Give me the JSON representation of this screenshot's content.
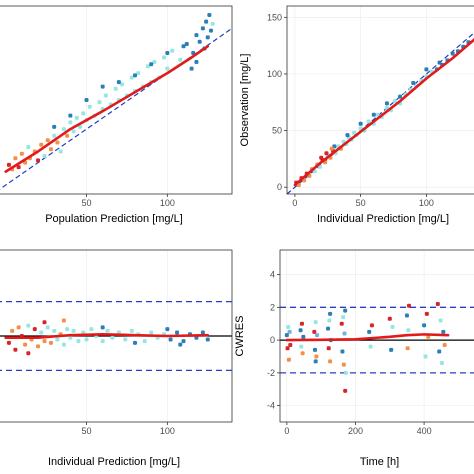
{
  "figure": {
    "panels": [
      "panel_tl",
      "panel_tr",
      "panel_bl",
      "panel_br"
    ]
  },
  "colors": {
    "smooth": "#e31a1c",
    "identity": "#1f3fbf",
    "zero": "#000000",
    "bound": "#2b3ec4",
    "points": [
      "#1f78b4",
      "#8ee6e0",
      "#f08a3c",
      "#d7191c",
      "#6baed6"
    ]
  },
  "chart_data": [
    {
      "id": "panel_tl",
      "type": "scatter",
      "title": "",
      "xlabel": "Population Prediction [mg/L]",
      "ylabel": "",
      "xlim": [
        -6,
        140
      ],
      "ylim": [
        -8,
        160
      ],
      "xticks": [
        50,
        100
      ],
      "yticks": [],
      "reference": "identity",
      "smooth": [
        [
          0,
          12
        ],
        [
          20,
          30
        ],
        [
          40,
          50
        ],
        [
          60,
          66
        ],
        [
          80,
          83
        ],
        [
          100,
          100
        ],
        [
          115,
          114
        ],
        [
          125,
          124
        ]
      ],
      "points": [
        [
          2,
          18,
          3
        ],
        [
          4,
          14,
          2
        ],
        [
          6,
          24,
          2
        ],
        [
          8,
          16,
          3
        ],
        [
          10,
          28,
          2
        ],
        [
          12,
          20,
          2
        ],
        [
          14,
          34,
          1
        ],
        [
          15,
          24,
          2
        ],
        [
          18,
          30,
          2
        ],
        [
          20,
          22,
          3
        ],
        [
          22,
          36,
          2
        ],
        [
          24,
          26,
          1
        ],
        [
          26,
          40,
          2
        ],
        [
          28,
          32,
          2
        ],
        [
          30,
          44,
          1
        ],
        [
          32,
          38,
          2
        ],
        [
          34,
          30,
          1
        ],
        [
          36,
          50,
          1
        ],
        [
          38,
          44,
          2
        ],
        [
          40,
          56,
          1
        ],
        [
          42,
          48,
          1
        ],
        [
          44,
          60,
          1
        ],
        [
          46,
          52,
          1
        ],
        [
          48,
          64,
          1
        ],
        [
          50,
          58,
          1
        ],
        [
          52,
          70,
          1
        ],
        [
          55,
          62,
          1
        ],
        [
          58,
          74,
          1
        ],
        [
          60,
          68,
          1
        ],
        [
          62,
          80,
          1
        ],
        [
          65,
          72,
          1
        ],
        [
          68,
          86,
          1
        ],
        [
          70,
          76,
          1
        ],
        [
          72,
          90,
          1
        ],
        [
          75,
          80,
          1
        ],
        [
          78,
          96,
          1
        ],
        [
          80,
          84,
          1
        ],
        [
          82,
          100,
          1
        ],
        [
          85,
          88,
          1
        ],
        [
          88,
          106,
          1
        ],
        [
          90,
          92,
          1
        ],
        [
          92,
          110,
          1
        ],
        [
          95,
          96,
          1
        ],
        [
          98,
          114,
          1
        ],
        [
          100,
          104,
          1
        ],
        [
          103,
          120,
          1
        ],
        [
          108,
          112,
          1
        ],
        [
          112,
          126,
          0
        ],
        [
          116,
          118,
          0
        ],
        [
          118,
          134,
          0
        ],
        [
          120,
          128,
          0
        ],
        [
          122,
          140,
          0
        ],
        [
          124,
          146,
          0
        ],
        [
          125,
          132,
          0
        ],
        [
          126,
          152,
          0
        ],
        [
          127,
          138,
          0
        ],
        [
          128,
          144,
          1
        ],
        [
          118,
          110,
          0
        ],
        [
          60,
          88,
          0
        ],
        [
          70,
          92,
          0
        ],
        [
          80,
          98,
          0
        ],
        [
          50,
          76,
          0
        ],
        [
          40,
          62,
          0
        ],
        [
          30,
          52,
          0
        ],
        [
          90,
          108,
          0
        ],
        [
          100,
          118,
          0
        ],
        [
          110,
          124,
          0
        ],
        [
          115,
          104,
          0
        ],
        [
          123,
          122,
          0
        ]
      ]
    },
    {
      "id": "panel_tr",
      "type": "scatter",
      "title": "",
      "xlabel": "Individual Prediction [mg/L]",
      "ylabel": "Observation [mg/L]",
      "xlim": [
        -6,
        140
      ],
      "ylim": [
        -6,
        160
      ],
      "xticks": [
        0,
        50,
        100
      ],
      "yticks": [
        0,
        50,
        100,
        150
      ],
      "reference": "identity",
      "smooth": [
        [
          0,
          2
        ],
        [
          20,
          22
        ],
        [
          40,
          40
        ],
        [
          60,
          58
        ],
        [
          80,
          76
        ],
        [
          100,
          96
        ],
        [
          120,
          114
        ],
        [
          140,
          134
        ]
      ],
      "points": [
        [
          1,
          4,
          3
        ],
        [
          3,
          2,
          2
        ],
        [
          5,
          8,
          3
        ],
        [
          7,
          6,
          2
        ],
        [
          9,
          12,
          3
        ],
        [
          11,
          10,
          2
        ],
        [
          13,
          16,
          2
        ],
        [
          15,
          14,
          1
        ],
        [
          17,
          20,
          2
        ],
        [
          19,
          18,
          1
        ],
        [
          21,
          24,
          3
        ],
        [
          23,
          22,
          2
        ],
        [
          25,
          28,
          1
        ],
        [
          27,
          26,
          2
        ],
        [
          29,
          32,
          3
        ],
        [
          31,
          30,
          1
        ],
        [
          33,
          36,
          1
        ],
        [
          35,
          34,
          2
        ],
        [
          37,
          40,
          1
        ],
        [
          39,
          38,
          1
        ],
        [
          41,
          44,
          1
        ],
        [
          43,
          42,
          1
        ],
        [
          45,
          48,
          1
        ],
        [
          47,
          46,
          1
        ],
        [
          50,
          52,
          1
        ],
        [
          53,
          50,
          1
        ],
        [
          56,
          58,
          1
        ],
        [
          60,
          56,
          1
        ],
        [
          63,
          64,
          1
        ],
        [
          66,
          62,
          1
        ],
        [
          70,
          70,
          1
        ],
        [
          73,
          68,
          1
        ],
        [
          76,
          76,
          1
        ],
        [
          80,
          74,
          1
        ],
        [
          84,
          82,
          1
        ],
        [
          88,
          86,
          1
        ],
        [
          92,
          90,
          1
        ],
        [
          96,
          94,
          1
        ],
        [
          100,
          98,
          1
        ],
        [
          104,
          102,
          1
        ],
        [
          108,
          104,
          0
        ],
        [
          112,
          108,
          0
        ],
        [
          116,
          112,
          0
        ],
        [
          120,
          118,
          0
        ],
        [
          124,
          120,
          0
        ],
        [
          128,
          124,
          0
        ],
        [
          132,
          128,
          0
        ],
        [
          60,
          64,
          0
        ],
        [
          70,
          74,
          0
        ],
        [
          80,
          80,
          0
        ],
        [
          90,
          92,
          0
        ],
        [
          100,
          104,
          0
        ],
        [
          110,
          110,
          0
        ],
        [
          40,
          46,
          0
        ],
        [
          30,
          36,
          0
        ],
        [
          50,
          56,
          0
        ],
        [
          20,
          26,
          3
        ],
        [
          24,
          30,
          3
        ],
        [
          28,
          34,
          2
        ]
      ]
    },
    {
      "id": "panel_bl",
      "type": "scatter",
      "title": "",
      "xlabel": "Individual Prediction [mg/L]",
      "ylabel": "",
      "xlim": [
        -6,
        140
      ],
      "ylim": [
        -5,
        5
      ],
      "xticks": [
        50,
        100
      ],
      "yticks": [],
      "zero_line": 0,
      "bounds": [
        -2,
        2
      ],
      "smooth": [
        [
          0,
          -0.1
        ],
        [
          20,
          -0.1
        ],
        [
          40,
          0.05
        ],
        [
          60,
          0.1
        ],
        [
          80,
          0.05
        ],
        [
          100,
          0.0
        ],
        [
          125,
          0.05
        ]
      ],
      "points": [
        [
          2,
          -0.4,
          3
        ],
        [
          4,
          0.3,
          2
        ],
        [
          6,
          -0.8,
          3
        ],
        [
          8,
          0.5,
          2
        ],
        [
          10,
          0.0,
          3
        ],
        [
          12,
          -0.5,
          2
        ],
        [
          14,
          0.6,
          1
        ],
        [
          16,
          -0.2,
          2
        ],
        [
          18,
          0.4,
          3
        ],
        [
          20,
          -0.6,
          2
        ],
        [
          22,
          0.2,
          1
        ],
        [
          24,
          -0.3,
          2
        ],
        [
          26,
          0.5,
          1
        ],
        [
          28,
          -0.4,
          2
        ],
        [
          30,
          0.3,
          1
        ],
        [
          32,
          -0.2,
          1
        ],
        [
          34,
          0.1,
          2
        ],
        [
          36,
          -0.5,
          1
        ],
        [
          38,
          0.4,
          1
        ],
        [
          40,
          -0.1,
          1
        ],
        [
          42,
          0.3,
          1
        ],
        [
          45,
          -0.3,
          1
        ],
        [
          48,
          0.2,
          1
        ],
        [
          50,
          -0.2,
          1
        ],
        [
          53,
          0.4,
          1
        ],
        [
          56,
          0.0,
          1
        ],
        [
          60,
          -0.3,
          1
        ],
        [
          63,
          0.3,
          1
        ],
        [
          66,
          -0.1,
          1
        ],
        [
          70,
          0.2,
          1
        ],
        [
          74,
          -0.2,
          1
        ],
        [
          78,
          0.3,
          1
        ],
        [
          82,
          0.1,
          1
        ],
        [
          86,
          -0.3,
          1
        ],
        [
          90,
          0.2,
          1
        ],
        [
          94,
          -0.1,
          1
        ],
        [
          98,
          0.1,
          1
        ],
        [
          102,
          -0.2,
          0
        ],
        [
          106,
          0.2,
          0
        ],
        [
          110,
          -0.3,
          0
        ],
        [
          114,
          0.1,
          0
        ],
        [
          118,
          -0.1,
          0
        ],
        [
          122,
          0.2,
          0
        ],
        [
          125,
          -0.2,
          0
        ],
        [
          60,
          0.5,
          0
        ],
        [
          80,
          -0.4,
          0
        ],
        [
          100,
          0.4,
          0
        ],
        [
          108,
          -0.5,
          0
        ],
        [
          24,
          0.8,
          3
        ],
        [
          14,
          -1.0,
          3
        ],
        [
          36,
          0.9,
          2
        ]
      ]
    },
    {
      "id": "panel_br",
      "type": "scatter",
      "title": "",
      "xlabel": "Time [h]",
      "ylabel": "CWRES",
      "xlim": [
        -20,
        560
      ],
      "ylim": [
        -5,
        5.5
      ],
      "xticks": [
        0,
        200,
        400
      ],
      "yticks": [
        4,
        2,
        0,
        -2,
        -4
      ],
      "zero_line": 0,
      "bounds": [
        -2,
        2
      ],
      "smooth": [
        [
          0,
          0.0
        ],
        [
          100,
          0.02
        ],
        [
          200,
          0.05
        ],
        [
          300,
          0.2
        ],
        [
          350,
          0.3
        ],
        [
          400,
          0.35
        ],
        [
          470,
          0.3
        ]
      ],
      "points": [
        [
          0,
          0.3,
          0
        ],
        [
          2,
          -0.5,
          3
        ],
        [
          4,
          0.8,
          1
        ],
        [
          6,
          -1.2,
          2
        ],
        [
          8,
          0.5,
          4
        ],
        [
          10,
          -0.3,
          3
        ],
        [
          40,
          0.6,
          0
        ],
        [
          42,
          -0.4,
          1
        ],
        [
          44,
          1.0,
          3
        ],
        [
          46,
          -0.8,
          2
        ],
        [
          48,
          0.2,
          0
        ],
        [
          80,
          0.5,
          3
        ],
        [
          82,
          -0.6,
          0
        ],
        [
          84,
          1.1,
          1
        ],
        [
          86,
          -1.0,
          2
        ],
        [
          88,
          0.3,
          4
        ],
        [
          120,
          0.7,
          0
        ],
        [
          122,
          -0.5,
          3
        ],
        [
          124,
          1.2,
          1
        ],
        [
          126,
          -1.3,
          2
        ],
        [
          128,
          0.0,
          0
        ],
        [
          160,
          1.0,
          3
        ],
        [
          162,
          -0.7,
          0
        ],
        [
          164,
          1.4,
          1
        ],
        [
          166,
          -1.5,
          2
        ],
        [
          168,
          0.4,
          4
        ],
        [
          170,
          -3.1,
          3
        ],
        [
          240,
          0.5,
          0
        ],
        [
          244,
          -0.4,
          1
        ],
        [
          248,
          0.9,
          3
        ],
        [
          300,
          1.3,
          3
        ],
        [
          304,
          -0.6,
          0
        ],
        [
          308,
          0.8,
          1
        ],
        [
          350,
          1.5,
          0
        ],
        [
          352,
          -0.5,
          2
        ],
        [
          354,
          0.6,
          1
        ],
        [
          356,
          2.1,
          3
        ],
        [
          400,
          0.9,
          0
        ],
        [
          404,
          -1.0,
          1
        ],
        [
          408,
          1.6,
          3
        ],
        [
          412,
          0.2,
          2
        ],
        [
          440,
          2.2,
          3
        ],
        [
          444,
          -0.7,
          0
        ],
        [
          448,
          1.2,
          1
        ],
        [
          452,
          -1.4,
          1
        ],
        [
          456,
          0.5,
          0
        ],
        [
          460,
          -0.3,
          2
        ],
        [
          170,
          1.8,
          0
        ],
        [
          172,
          -2.0,
          1
        ],
        [
          126,
          1.6,
          0
        ],
        [
          84,
          -1.3,
          0
        ]
      ]
    }
  ]
}
